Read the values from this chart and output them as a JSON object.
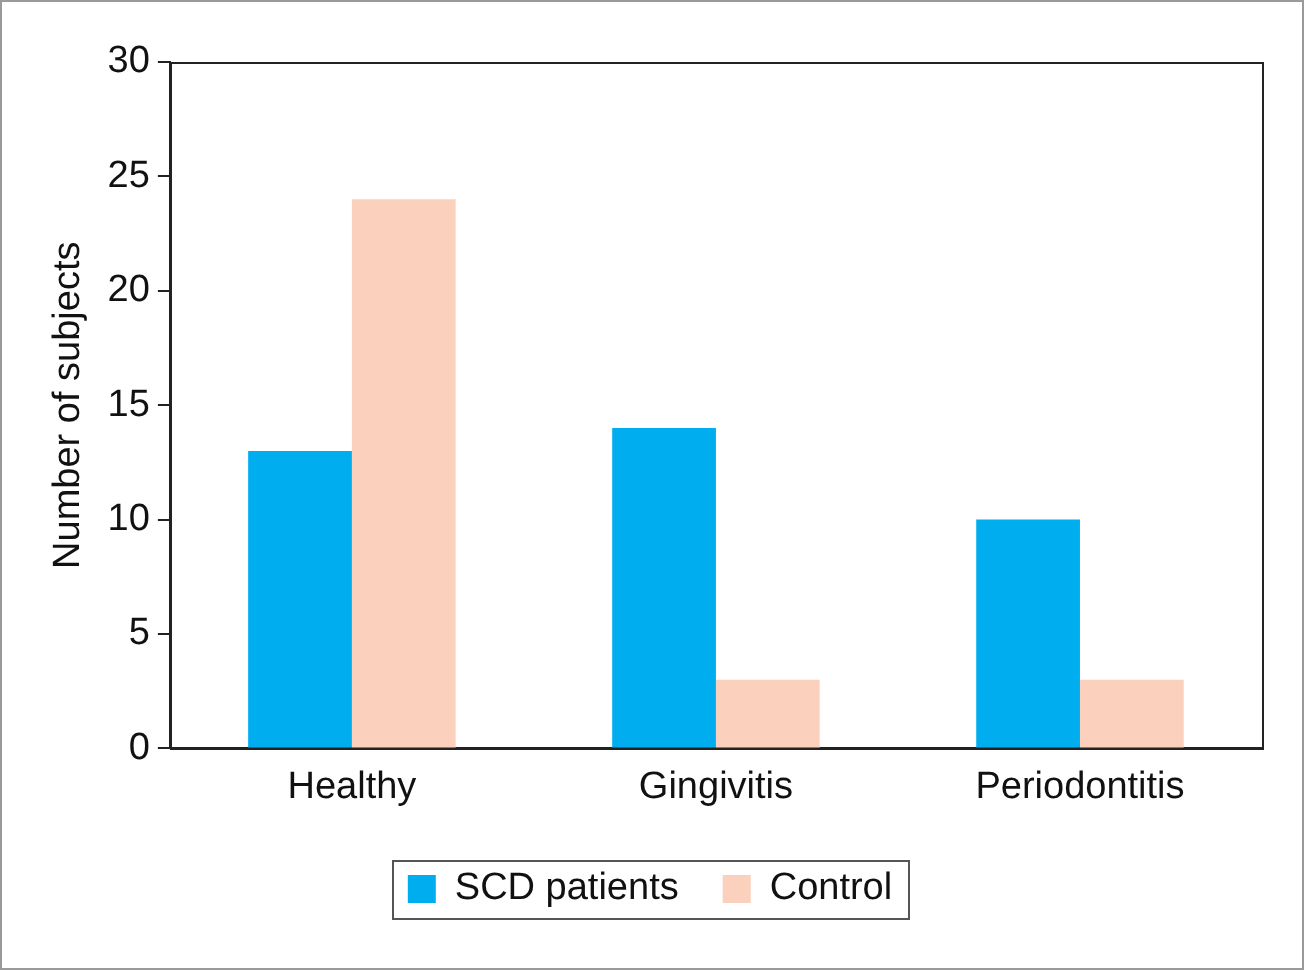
{
  "chart_data": {
    "type": "bar",
    "ylabel": "Number of subjects",
    "categories": [
      "Healthy",
      "Gingivitis",
      "Periodontitis"
    ],
    "series": [
      {
        "name": "SCD patients",
        "color": "#00aeef",
        "values": [
          13,
          14,
          10
        ]
      },
      {
        "name": "Control",
        "color": "#fbd0bd",
        "values": [
          24,
          3,
          3
        ]
      }
    ],
    "ylim": [
      0,
      30
    ],
    "yticks": [
      0,
      5,
      10,
      15,
      20,
      25,
      30
    ],
    "grid": false,
    "legend": "bottom"
  }
}
